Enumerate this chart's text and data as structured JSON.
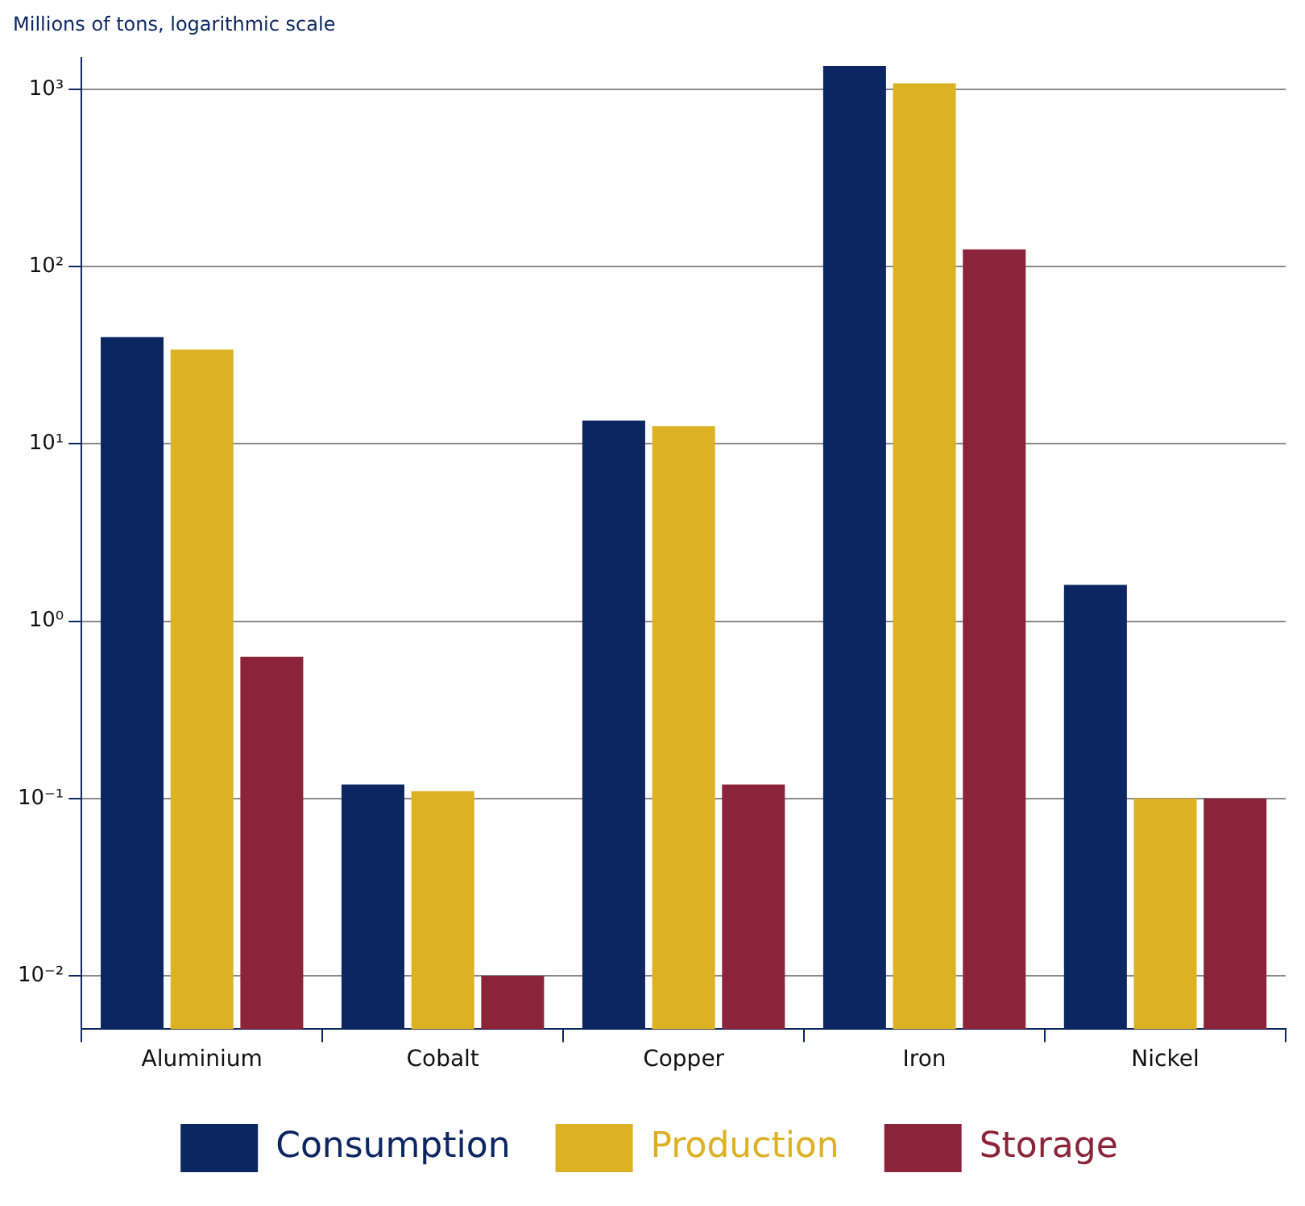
{
  "chart_data": {
    "type": "bar",
    "ylabel": "Millions of tons, logarithmic scale",
    "categories": [
      "Aluminium",
      "Cobalt",
      "Copper",
      "Iron",
      "Nickel"
    ],
    "series": [
      {
        "name": "Consumption",
        "color": "#0b2660",
        "values": [
          40,
          0.12,
          13.5,
          1350,
          1.6
        ]
      },
      {
        "name": "Production",
        "color": "#dcb124",
        "values": [
          34,
          0.11,
          12.6,
          1080,
          0.1
        ]
      },
      {
        "name": "Storage",
        "color": "#8b2439",
        "values": [
          0.63,
          0.01,
          0.12,
          125,
          0.1
        ]
      }
    ],
    "log": "y",
    "ylim": [
      0.005,
      1500
    ],
    "yticks": [
      {
        "value": 0.01,
        "label": "10⁻²"
      },
      {
        "value": 0.1,
        "label": "10⁻¹"
      },
      {
        "value": 1,
        "label": "10⁰"
      },
      {
        "value": 10,
        "label": "10¹"
      },
      {
        "value": 100,
        "label": "10²"
      },
      {
        "value": 1000,
        "label": "10³"
      }
    ],
    "grid": "y",
    "legend": "bottom"
  }
}
